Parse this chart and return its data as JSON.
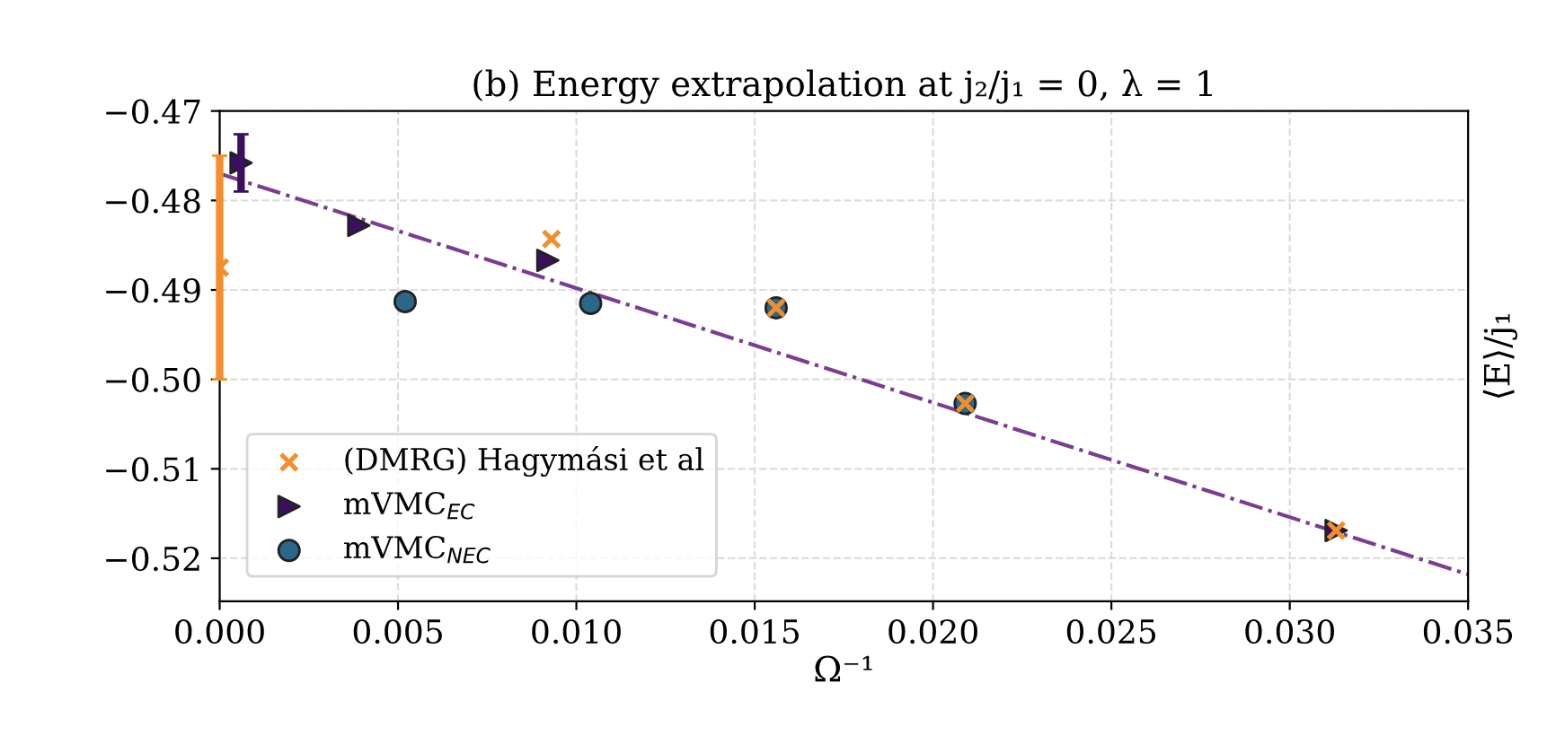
{
  "chart_data": {
    "type": "scatter",
    "title": "(b) Energy extrapolation at j₂/j₁ = 0, λ = 1",
    "xlabel": "Ω⁻¹",
    "ylabel": "⟨E⟩/j₁",
    "series": [
      {
        "type": "line",
        "color": "#7b3c94",
        "line_style": "dashdot",
        "marker": "none",
        "x": [
          0,
          0.035
        ],
        "values": [
          -0.477,
          -0.5218
        ]
      },
      {
        "name": "(DMRG) Hagymási et al",
        "color": "#f28e2b",
        "marker": "cross",
        "x": [
          0,
          0.0093,
          0.0156,
          0.0209,
          0.0313
        ],
        "values": [
          -0.4875,
          -0.4843,
          -0.492,
          -0.5027,
          -0.5169
        ],
        "errors": [
          [
            -0.5,
            -0.475
          ],
          null,
          null,
          null,
          null
        ]
      },
      {
        "name": "mVMC$_{EC}$",
        "color": "#3b0f5e",
        "marker": "triangle",
        "x": [
          0.0006,
          0.0039,
          0.0092,
          0.0313
        ],
        "values": [
          -0.4758,
          -0.4828,
          -0.4867,
          -0.5169
        ],
        "errors": [
          [
            -0.479,
            -0.4726
          ],
          null,
          null,
          null
        ]
      },
      {
        "name": "mVMC$_{NEC}$",
        "color": "#2a6788",
        "marker": "circle",
        "x": [
          0.0052,
          0.0104,
          0.0156,
          0.0209
        ],
        "values": [
          -0.4913,
          -0.4915,
          -0.492,
          -0.5027
        ],
        "errors": [
          null,
          null,
          null,
          null
        ]
      }
    ],
    "xlim": [
      0,
      0.035
    ],
    "ylim": [
      -0.5248,
      -0.47
    ],
    "xticks": [
      {
        "value": 0,
        "label": "0.000"
      },
      {
        "value": 0.005,
        "label": "0.005"
      },
      {
        "value": 0.01,
        "label": "0.010"
      },
      {
        "value": 0.015,
        "label": "0.015"
      },
      {
        "value": 0.02,
        "label": "0.020"
      },
      {
        "value": 0.025,
        "label": "0.025"
      },
      {
        "value": 0.03,
        "label": "0.030"
      },
      {
        "value": 0.035,
        "label": "0.035"
      }
    ],
    "yticks": [
      -0.47,
      -0.48,
      -0.49,
      {
        "value": -0.5,
        "label": "−0.50"
      },
      -0.51,
      -0.52
    ],
    "grid": true,
    "legend": "bottom left"
  }
}
